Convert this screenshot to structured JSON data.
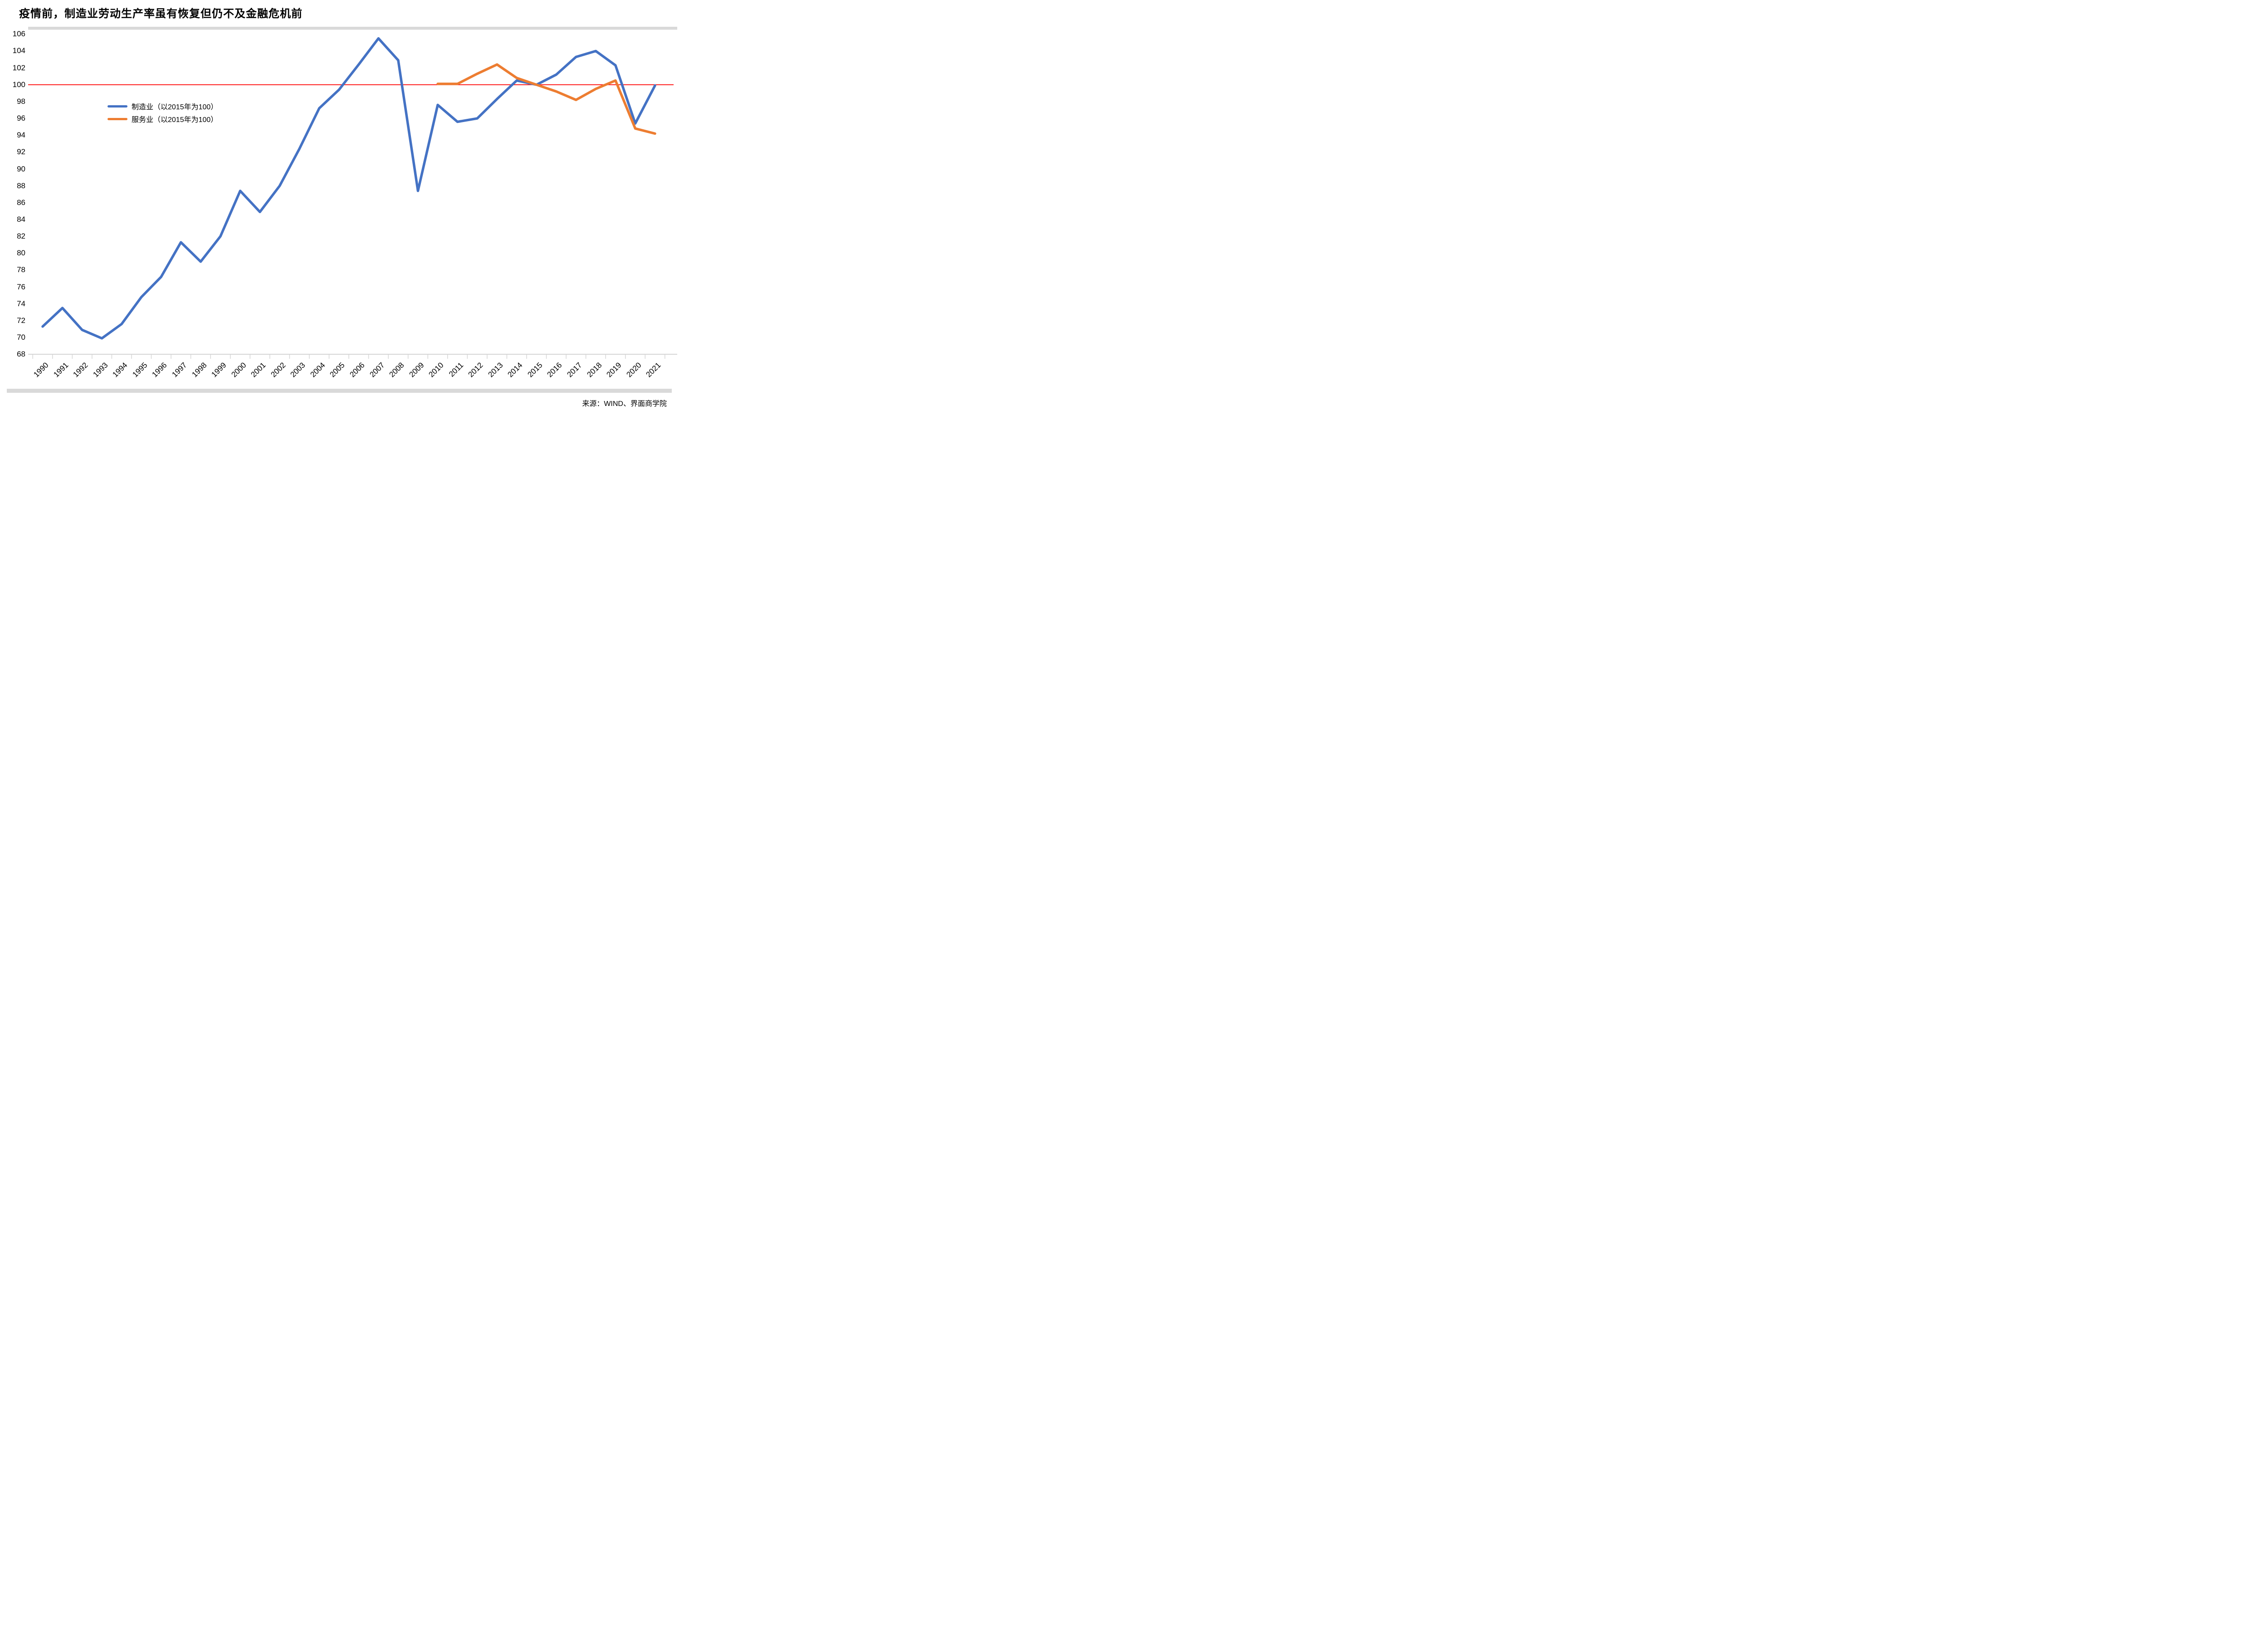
{
  "chart_data": {
    "type": "line",
    "title": "疫情前，制造业劳动生产率虽有恢复但仍不及金融危机前",
    "source": "来源：WIND、界面商学院",
    "x": [
      1990,
      1991,
      1992,
      1993,
      1994,
      1995,
      1996,
      1997,
      1998,
      1999,
      2000,
      2001,
      2002,
      2003,
      2004,
      2005,
      2006,
      2007,
      2008,
      2009,
      2010,
      2011,
      2012,
      2013,
      2014,
      2015,
      2016,
      2017,
      2018,
      2019,
      2020,
      2021
    ],
    "ylim": [
      68,
      106
    ],
    "ytick_step": 2,
    "grid": false,
    "legend_position": "inside-upper-left",
    "reference_line": {
      "value": 100,
      "color": "#ff0000"
    },
    "axis_color": "#d6d6d6",
    "border_color": "#d9d9d9",
    "series": [
      {
        "name": "制造业（以2015年为100）",
        "color": "#4472C4",
        "values": [
          71.3,
          73.5,
          70.9,
          69.9,
          71.6,
          74.8,
          77.2,
          81.3,
          79.0,
          82.0,
          87.4,
          84.9,
          88.0,
          92.4,
          97.2,
          99.4,
          102.4,
          105.5,
          102.9,
          87.4,
          97.6,
          95.6,
          96.0,
          98.3,
          100.5,
          100.0,
          101.2,
          103.3,
          104.0,
          102.3,
          95.4,
          99.9
        ]
      },
      {
        "name": "服务业（以2015年为100）",
        "color": "#ED7D31",
        "values": [
          null,
          null,
          null,
          null,
          null,
          null,
          null,
          null,
          null,
          null,
          null,
          null,
          null,
          null,
          null,
          null,
          null,
          null,
          null,
          null,
          100.1,
          100.1,
          101.3,
          102.4,
          100.8,
          100.0,
          99.2,
          98.2,
          99.5,
          100.5,
          94.8,
          94.2
        ]
      }
    ]
  }
}
